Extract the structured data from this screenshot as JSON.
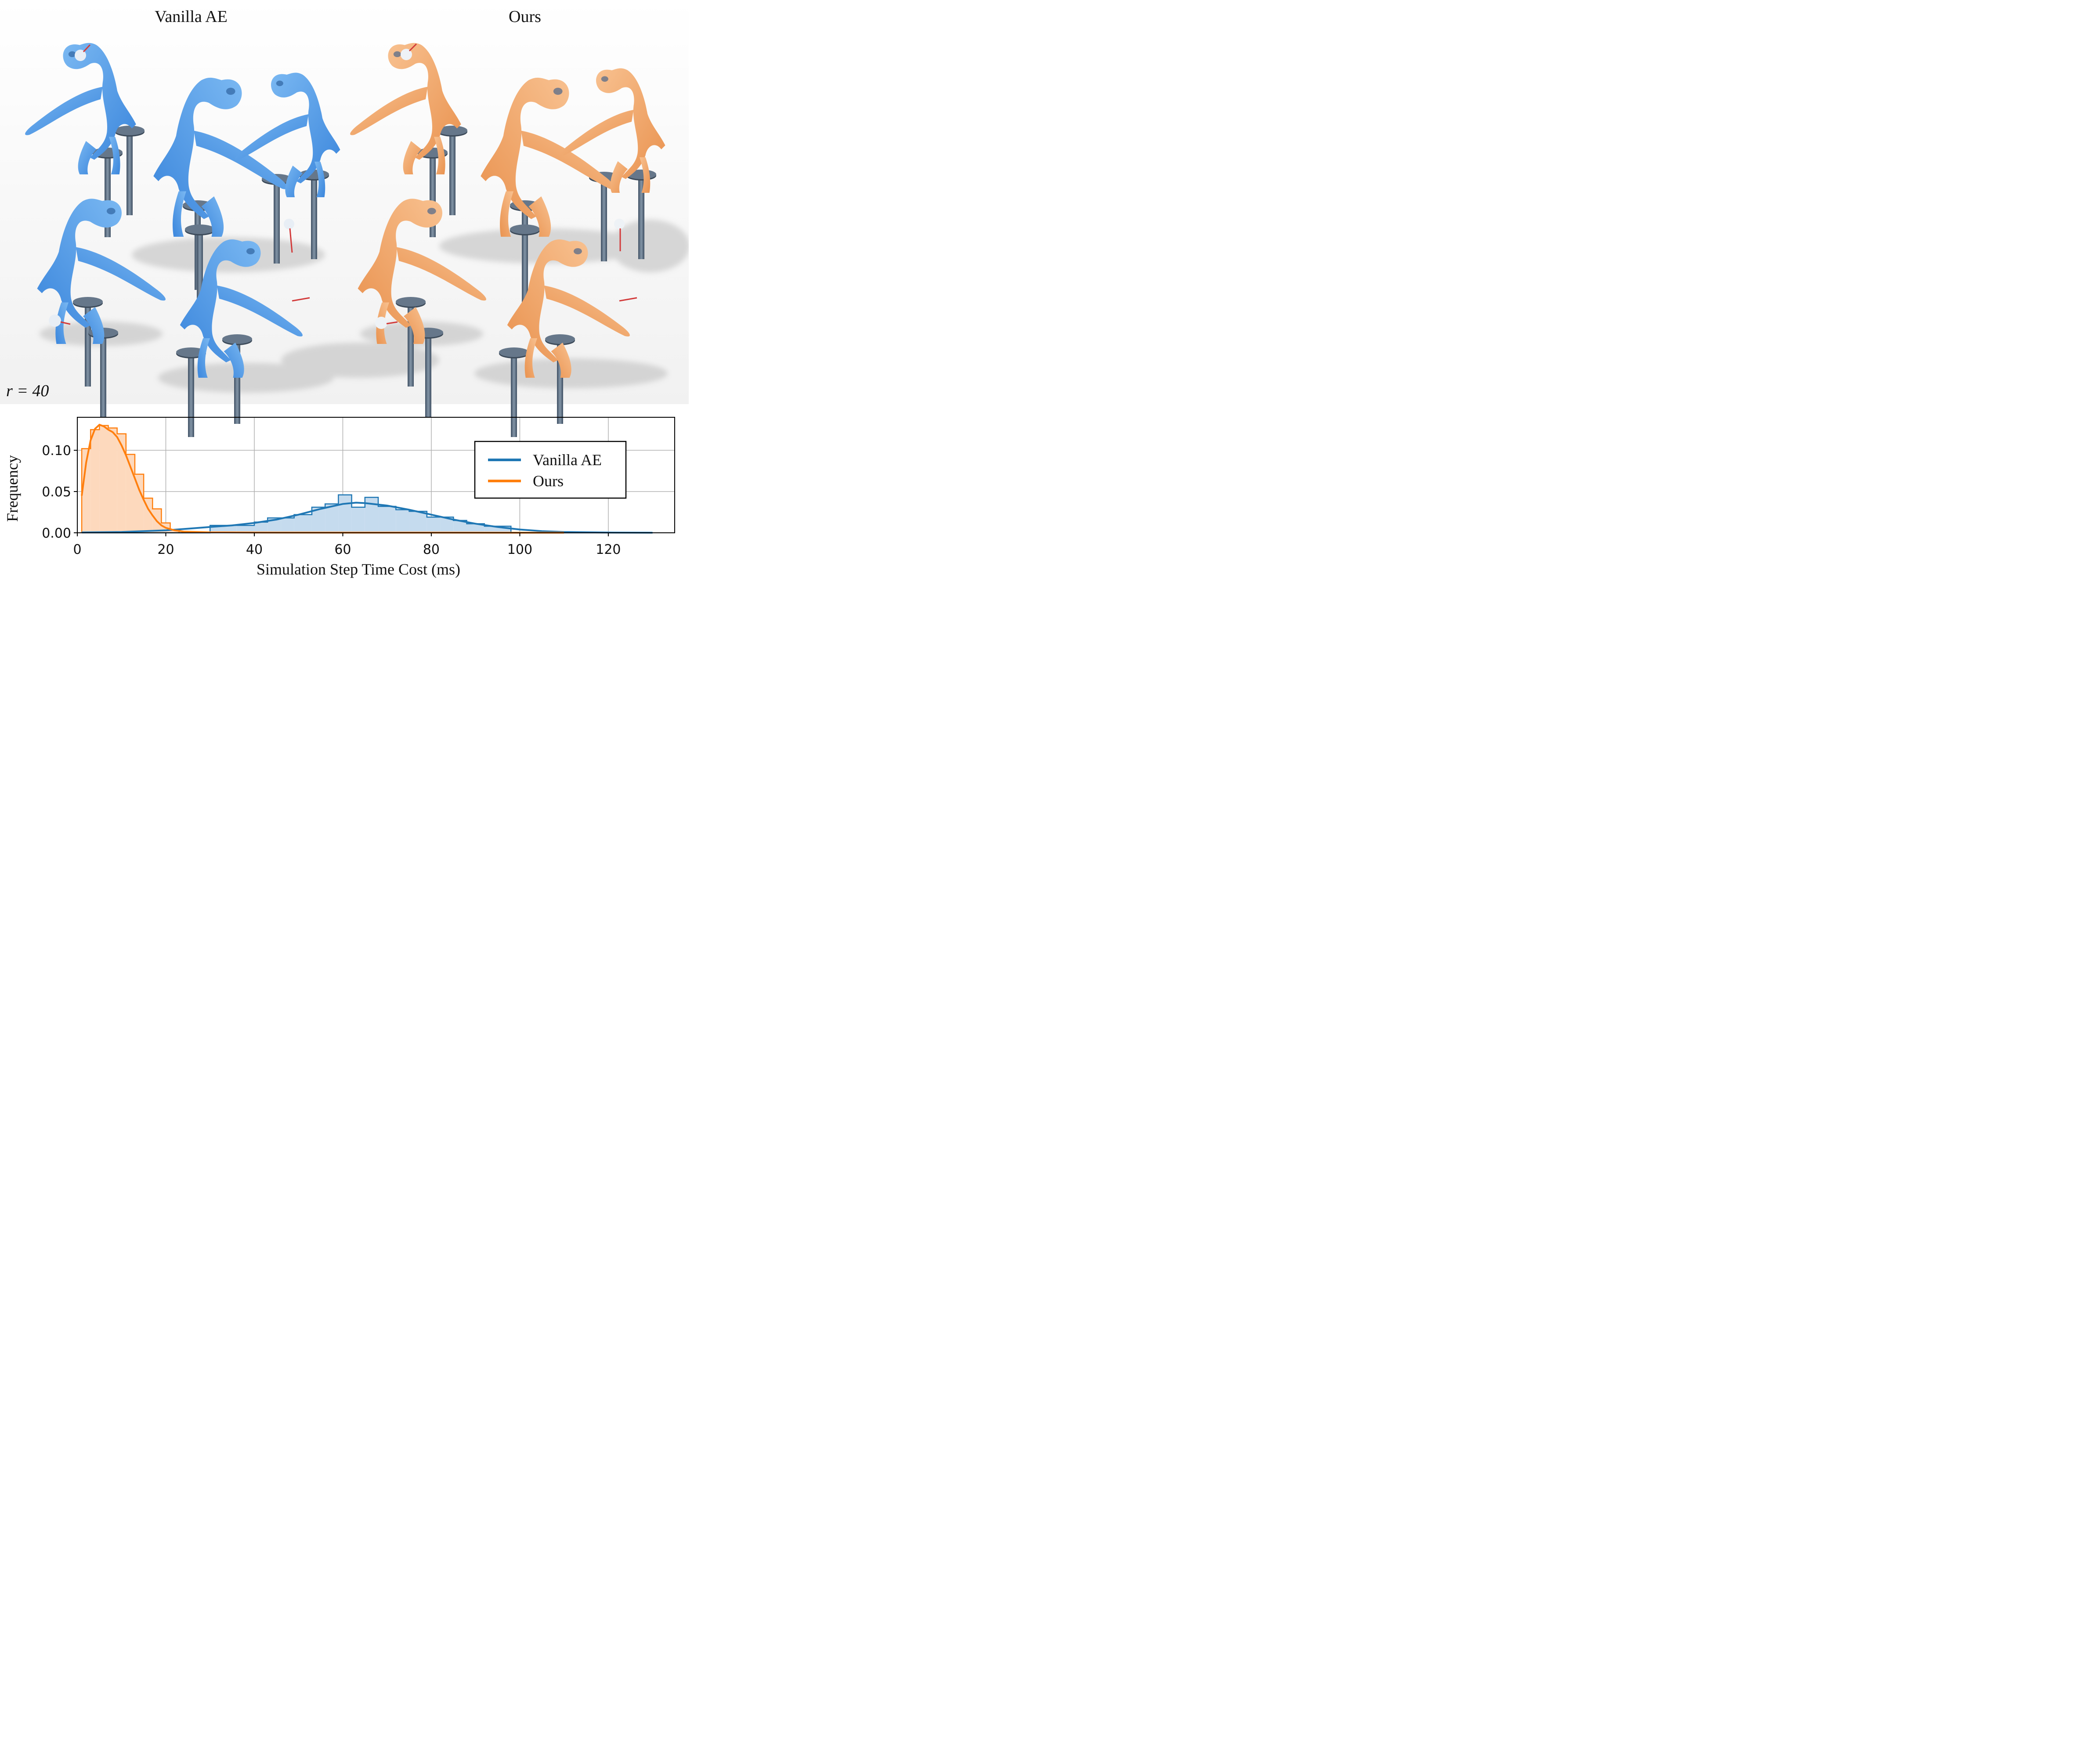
{
  "render_panel": {
    "left_title": "Vanilla AE",
    "right_title": "Ours",
    "parameter_label": "r = 40",
    "left_color": "#4a9ae8",
    "right_color": "#f2a064"
  },
  "chart_data": {
    "type": "histogram",
    "xlabel": "Simulation Step Time Cost (ms)",
    "ylabel": "Frequency",
    "xlim": [
      0,
      135
    ],
    "ylim": [
      0,
      0.14
    ],
    "x_ticks": [
      "0",
      "20",
      "40",
      "60",
      "80",
      "100",
      "120"
    ],
    "x_tick_values": [
      0,
      20,
      40,
      60,
      80,
      100,
      120
    ],
    "y_ticks": [
      "0.00",
      "0.05",
      "0.10"
    ],
    "y_tick_values": [
      0,
      0.05,
      0.1
    ],
    "grid": true,
    "legend_position": "right",
    "series": [
      {
        "name": "Vanilla AE",
        "color": "#1f77b4",
        "fill": "#c5dbee",
        "bins": [
          1,
          30,
          36,
          40,
          43,
          46,
          49,
          53,
          56,
          59,
          62,
          65,
          68,
          72,
          75,
          79,
          82,
          85,
          88,
          92,
          98,
          130
        ],
        "frequencies": [
          0.0,
          0.009,
          0.009,
          0.013,
          0.018,
          0.018,
          0.022,
          0.031,
          0.035,
          0.046,
          0.031,
          0.043,
          0.032,
          0.028,
          0.026,
          0.019,
          0.019,
          0.015,
          0.011,
          0.008,
          0.0
        ],
        "kde_x": [
          1,
          10,
          20,
          25,
          30,
          35,
          40,
          45,
          50,
          55,
          60,
          63,
          65,
          70,
          75,
          80,
          85,
          90,
          95,
          100,
          105,
          110,
          120,
          130
        ],
        "kde_y": [
          0.0005,
          0.001,
          0.003,
          0.005,
          0.007,
          0.009,
          0.012,
          0.016,
          0.022,
          0.029,
          0.035,
          0.0365,
          0.036,
          0.033,
          0.028,
          0.022,
          0.016,
          0.011,
          0.007,
          0.004,
          0.002,
          0.001,
          0.0003,
          0.0001
        ]
      },
      {
        "name": "Ours",
        "color": "#ff7f0e",
        "fill": "#fdd9bd",
        "bins": [
          1,
          3,
          5,
          7,
          9,
          11,
          13,
          15,
          17,
          19,
          21,
          23
        ],
        "frequencies": [
          0.102,
          0.125,
          0.13,
          0.127,
          0.12,
          0.095,
          0.071,
          0.042,
          0.029,
          0.012,
          0.004
        ],
        "kde_x": [
          1,
          2,
          3,
          4,
          5,
          6,
          7,
          8,
          9,
          10,
          11,
          12,
          13,
          14,
          15,
          16,
          17,
          18,
          19,
          20,
          22,
          24,
          30,
          40,
          60,
          80,
          100,
          110
        ],
        "kde_y": [
          0.045,
          0.085,
          0.112,
          0.126,
          0.131,
          0.129,
          0.125,
          0.122,
          0.116,
          0.106,
          0.094,
          0.08,
          0.066,
          0.052,
          0.04,
          0.029,
          0.021,
          0.014,
          0.009,
          0.006,
          0.003,
          0.0015,
          0.0006,
          0.0003,
          0.0002,
          0.0002,
          0.0001,
          0.0001
        ]
      }
    ]
  }
}
